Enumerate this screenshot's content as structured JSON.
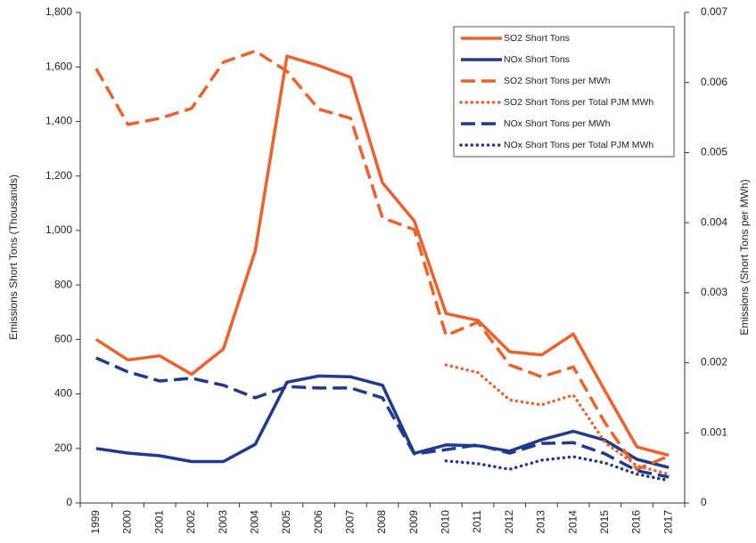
{
  "chart_data": {
    "type": "line",
    "y_label": "Emissions Short Tons (Thousands)",
    "y2_label": "Emissions (Short Tons per MWh)",
    "categories": [
      "1999",
      "2000",
      "2001",
      "2002",
      "2003",
      "2004",
      "2005",
      "2006",
      "2007",
      "2008",
      "2009",
      "2010",
      "2011",
      "2012",
      "2013",
      "2014",
      "2015",
      "2016",
      "2017"
    ],
    "ylim": [
      0,
      1800
    ],
    "yticks": [
      0,
      200,
      400,
      600,
      800,
      {
        "value": 1000,
        "label": "1,000"
      },
      {
        "value": 1200,
        "label": "1,200"
      },
      {
        "value": 1400,
        "label": "1,400"
      },
      {
        "value": 1600,
        "label": "1,600"
      },
      {
        "value": 1800,
        "label": "1,800"
      }
    ],
    "y2lim": [
      0,
      0.007
    ],
    "y2ticks": [
      0,
      0.001,
      0.002,
      0.003,
      0.004,
      0.005,
      0.006,
      0.007
    ],
    "legend": "top-right",
    "series": [
      {
        "name": "SO2 Short Tons",
        "color": "#f0602a",
        "dash": "solid",
        "axis": "y",
        "values": [
          600,
          525,
          540,
          472,
          565,
          925,
          1640,
          1605,
          1562,
          1175,
          1035,
          695,
          670,
          555,
          543,
          620,
          410,
          205,
          175
        ]
      },
      {
        "name": "NOx Short Tons",
        "color": "#1f3a8f",
        "dash": "solid",
        "axis": "y",
        "values": [
          200,
          183,
          173,
          152,
          152,
          215,
          443,
          466,
          463,
          432,
          182,
          213,
          210,
          190,
          232,
          263,
          230,
          160,
          130
        ]
      },
      {
        "name": "SO2 Short Tons per MWh",
        "color": "#f0602a",
        "dash": "dashed",
        "axis": "y2",
        "values": [
          0.0062,
          0.0054,
          0.00549,
          0.00563,
          0.00629,
          0.00645,
          0.00616,
          0.00562,
          0.00549,
          0.00407,
          0.0039,
          0.00239,
          0.00258,
          0.00197,
          0.0018,
          0.00194,
          0.00114,
          0.00048,
          0.00067
        ]
      },
      {
        "name": "SO2 Short Tons per Total PJM MWh",
        "color": "#f0602a",
        "dash": "dotted",
        "axis": "y2",
        "values": [
          null,
          null,
          null,
          null,
          null,
          null,
          null,
          null,
          null,
          null,
          null,
          0.00197,
          0.00186,
          0.00147,
          0.0014,
          0.00154,
          0.00086,
          0.00053,
          0.00041
        ]
      },
      {
        "name": "NOx Short Tons per MWh",
        "color": "#1f3a8f",
        "dash": "dashed",
        "axis": "y2",
        "values": [
          0.00207,
          0.00187,
          0.00174,
          0.00178,
          0.00168,
          0.0015,
          0.00166,
          0.00164,
          0.00164,
          0.0015,
          0.0007,
          0.00076,
          0.00083,
          0.00071,
          0.00085,
          0.00086,
          0.0007,
          0.00046,
          0.00037
        ]
      },
      {
        "name": "NOx Short Tons per Total PJM MWh",
        "color": "#1f3a8f",
        "dash": "dotted",
        "axis": "y2",
        "values": [
          null,
          null,
          null,
          null,
          null,
          null,
          null,
          null,
          null,
          null,
          null,
          0.0006,
          0.00056,
          0.00048,
          0.00061,
          0.00066,
          0.00057,
          0.00041,
          0.00032
        ]
      }
    ]
  }
}
